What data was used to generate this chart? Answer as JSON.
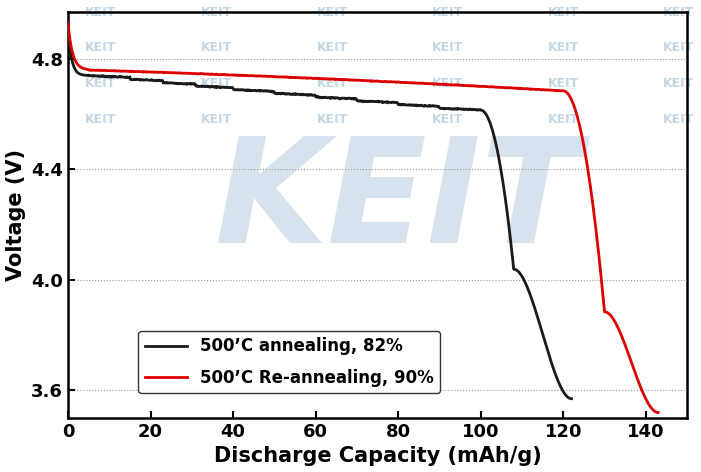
{
  "title": "",
  "xlabel": "Discharge Capacity (mAh/g)",
  "ylabel": "Voltage (V)",
  "xlim": [
    0,
    150
  ],
  "ylim": [
    3.5,
    4.97
  ],
  "xticks": [
    0,
    20,
    40,
    60,
    80,
    100,
    120,
    140
  ],
  "yticks": [
    3.6,
    4.0,
    4.4,
    4.8
  ],
  "legend1": "500ʼC annealing, 82%",
  "legend2": "500ʼC Re-annealing, 90%",
  "color1": "#1a1a1a",
  "color2": "#dd0000",
  "linewidth": 2.0,
  "grid_color": "#999999",
  "grid_linestyle": ":",
  "background_color": "#ffffff",
  "watermark_text_color": "#b8cfe0",
  "watermark_big_color": "#c5d8e8",
  "xlabel_fontsize": 15,
  "ylabel_fontsize": 15,
  "tick_fontsize": 13,
  "legend_fontsize": 12,
  "fig_width": 7.01,
  "fig_height": 4.72,
  "fig_dpi": 100
}
